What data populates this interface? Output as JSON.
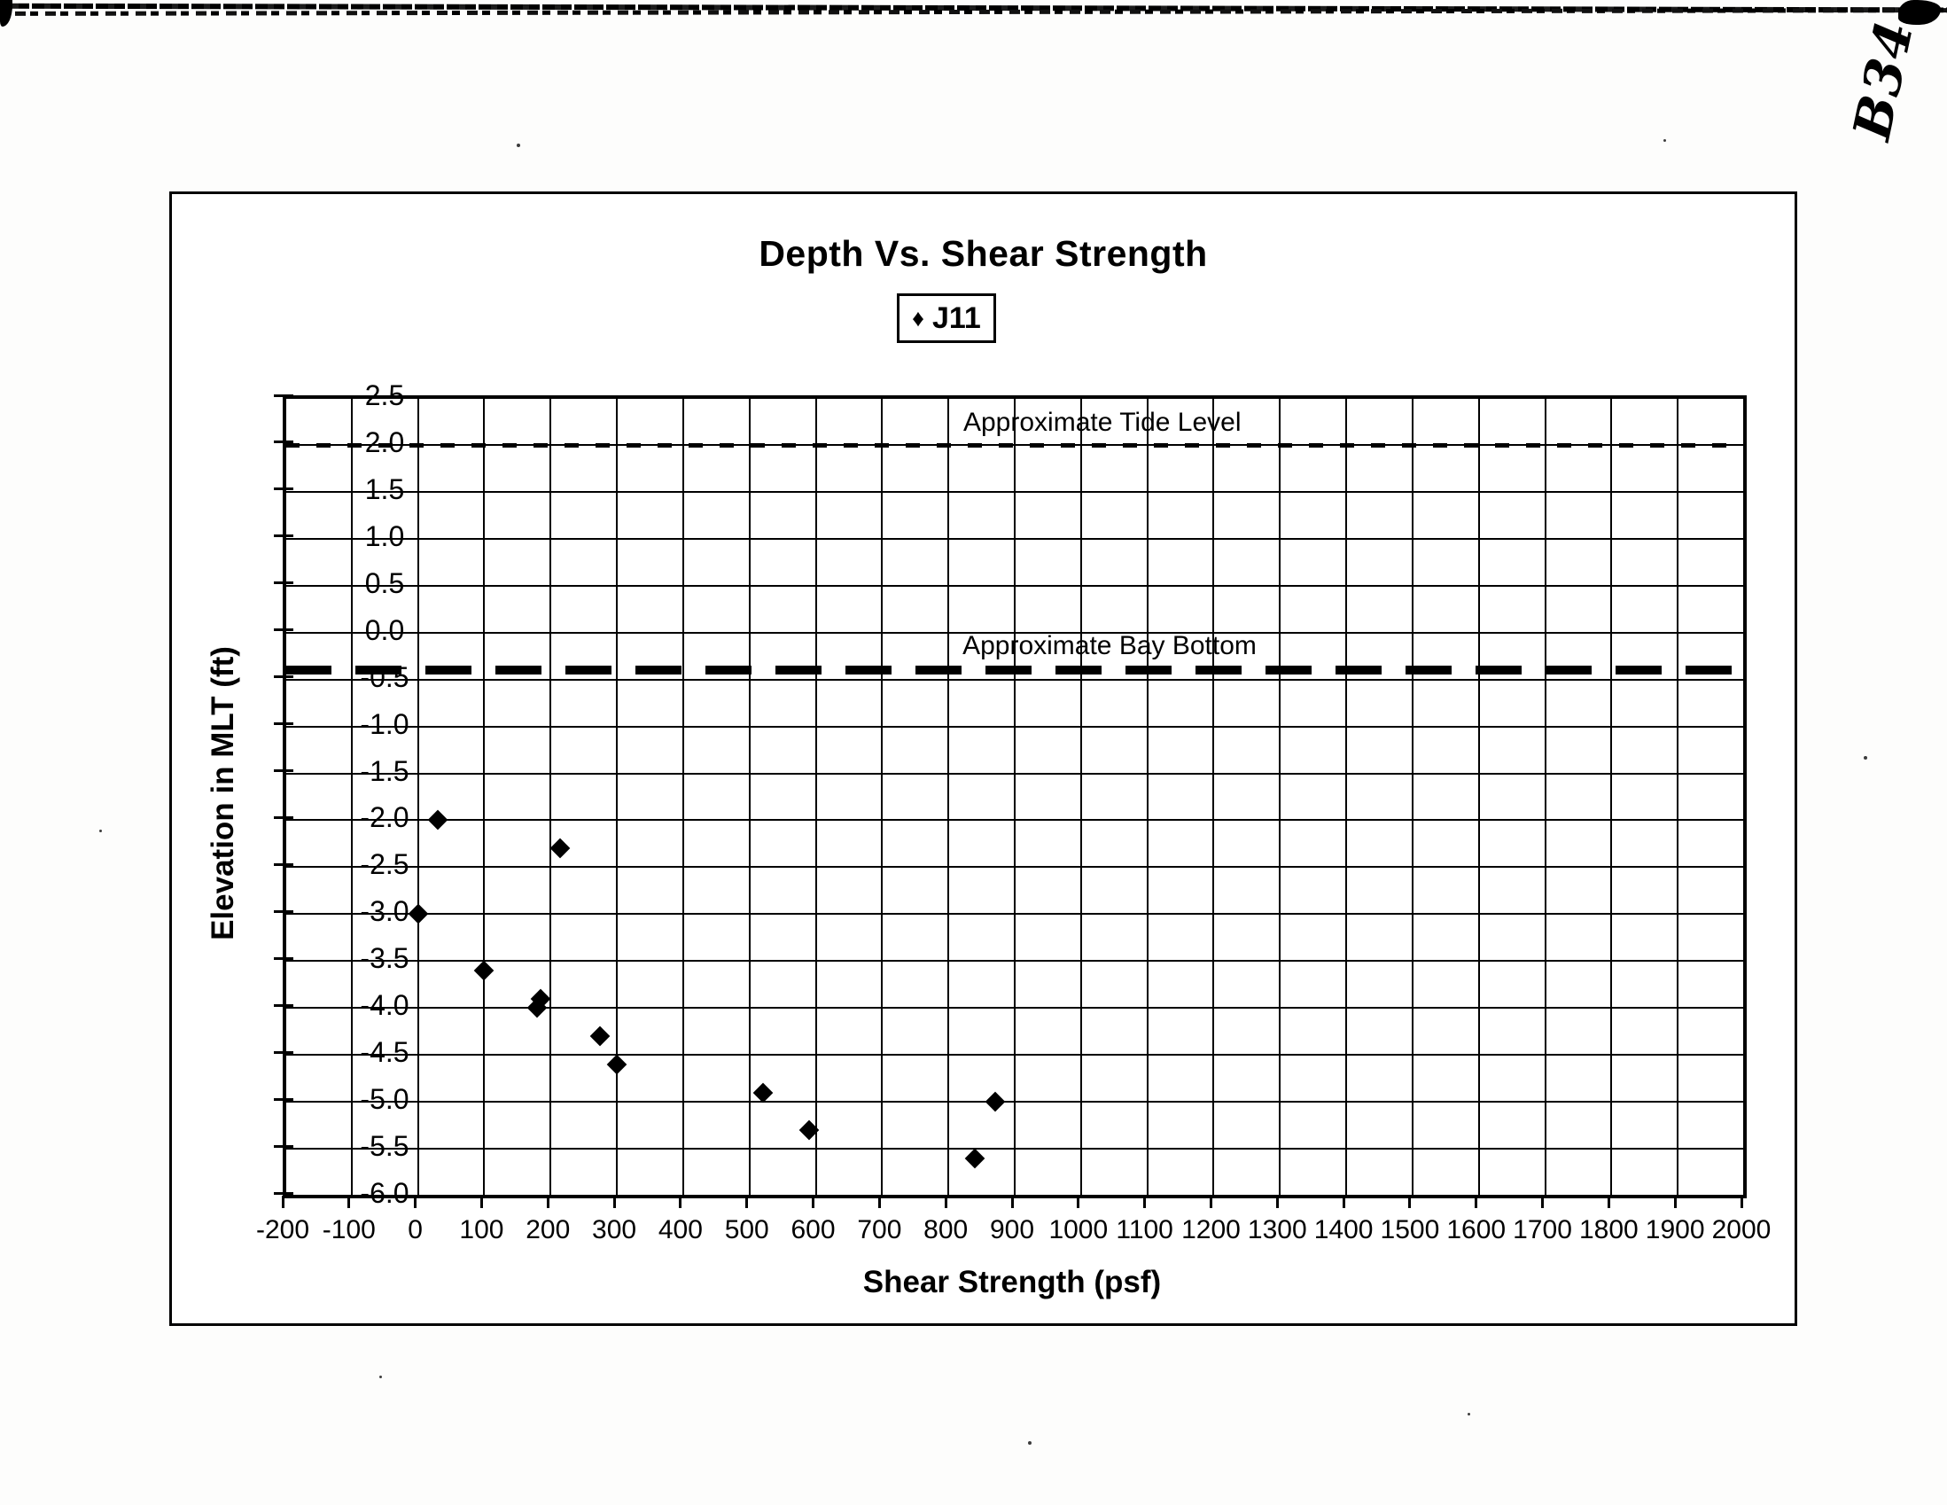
{
  "page": {
    "handwritten_note": "B34"
  },
  "chart_data": {
    "type": "scatter",
    "title": "Depth Vs. Shear Strength",
    "xlabel": "Shear Strength (psf)",
    "ylabel": "Elevation in MLT (ft)",
    "xlim": [
      -200,
      2000
    ],
    "ylim": [
      -6.0,
      2.5
    ],
    "grid": "on",
    "x_tick_labels": [
      "-200",
      "-100",
      "0",
      "100",
      "200",
      "300",
      "400",
      "500",
      "600",
      "700",
      "800",
      "900",
      "1000",
      "1100",
      "1200",
      "1300",
      "1400",
      "1500",
      "1600",
      "1700",
      "1800",
      "1900",
      "2000"
    ],
    "x_tick_values": [
      -200,
      -100,
      0,
      100,
      200,
      300,
      400,
      500,
      600,
      700,
      800,
      900,
      1000,
      1100,
      1200,
      1300,
      1400,
      1500,
      1600,
      1700,
      1800,
      1900,
      2000
    ],
    "y_tick_labels": [
      "2.5",
      "2.0",
      "1.5",
      "1.0",
      "0.5",
      "0.0",
      "-0.5",
      "-1.0",
      "-1.5",
      "-2.0",
      "-2.5",
      "-3.0",
      "-3.5",
      "-4.0",
      "-4.5",
      "-5.0",
      "-5.5",
      "-6.0"
    ],
    "y_tick_values": [
      2.5,
      2.0,
      1.5,
      1.0,
      0.5,
      0.0,
      -0.5,
      -1.0,
      -1.5,
      -2.0,
      -2.5,
      -3.0,
      -3.5,
      -4.0,
      -4.5,
      -5.0,
      -5.5,
      -6.0
    ],
    "legend": {
      "position": "top-center",
      "entries": [
        {
          "label": "J11",
          "marker": "diamond",
          "marker_glyph": "♦"
        }
      ]
    },
    "series": [
      {
        "name": "J11",
        "marker": "diamond",
        "points": [
          [
            30,
            -2.0
          ],
          [
            215,
            -2.3
          ],
          [
            0,
            -3.0
          ],
          [
            100,
            -3.6
          ],
          [
            185,
            -3.9
          ],
          [
            180,
            -4.0
          ],
          [
            275,
            -4.3
          ],
          [
            300,
            -4.6
          ],
          [
            520,
            -4.9
          ],
          [
            870,
            -5.0
          ],
          [
            590,
            -5.3
          ],
          [
            840,
            -5.6
          ]
        ]
      }
    ],
    "reference_lines": [
      {
        "label": "Approximate Tide Level",
        "elevation": 2.0,
        "style": "dashed-thin"
      },
      {
        "label": "Approximate Bay Bottom",
        "elevation": -0.4,
        "style": "dashed-thick"
      }
    ],
    "colors": {
      "ink": "#000000",
      "paper": "#ffffff"
    }
  }
}
